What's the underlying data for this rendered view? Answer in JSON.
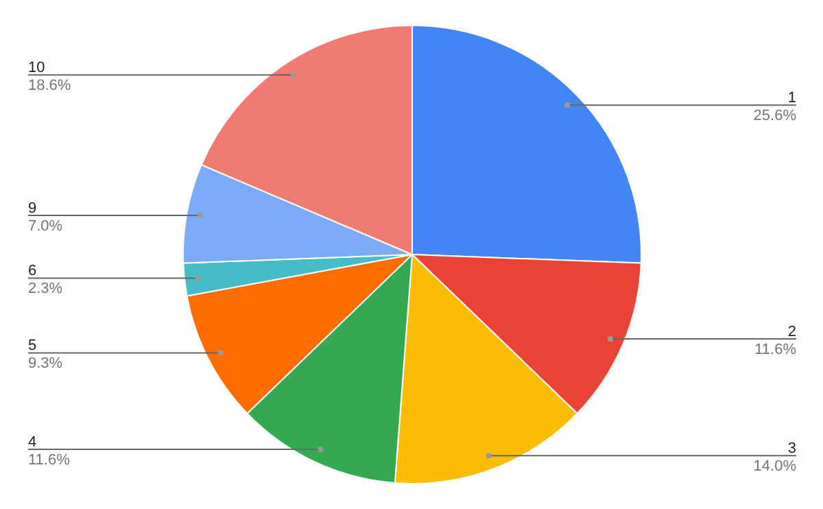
{
  "chart_data": {
    "type": "pie",
    "categories": [
      "1",
      "2",
      "3",
      "4",
      "5",
      "6",
      "9",
      "10"
    ],
    "values": [
      25.6,
      11.6,
      14.0,
      11.6,
      9.3,
      2.3,
      7.0,
      18.6
    ],
    "value_labels": [
      "25.6%",
      "11.6%",
      "14.0%",
      "11.6%",
      "9.3%",
      "2.3%",
      "7.0%",
      "18.6%"
    ],
    "colors": [
      "#4285f4",
      "#ea4335",
      "#fbbc04",
      "#34a853",
      "#ff6d01",
      "#46bdc6",
      "#7baaf7",
      "#f07b72"
    ]
  }
}
